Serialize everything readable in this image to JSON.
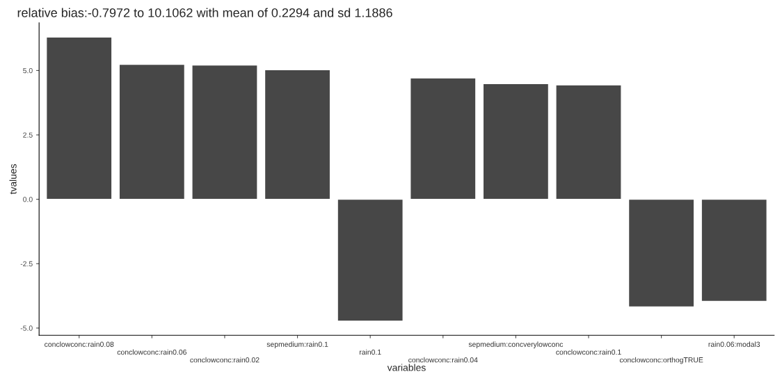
{
  "chart_data": {
    "type": "bar",
    "title": "relative bias:-0.7972 to 10.1062 with mean of 0.2294 and sd 1.1886",
    "xlabel": "variables",
    "ylabel": "tvalues",
    "categories": [
      "conclowconc:rain0.08",
      "conclowconc:rain0.06",
      "conclowconc:rain0.02",
      "sepmedium:rain0.1",
      "rain0.1",
      "conclowconc:rain0.04",
      "sepmedium:concverylowconc",
      "conclowconc:rain0.1",
      "conclowconc:orthogTRUE",
      "rain0.06:modal3"
    ],
    "values": [
      6.3,
      5.24,
      5.21,
      5.03,
      -4.73,
      4.71,
      4.49,
      4.44,
      -4.18,
      -3.96
    ],
    "color": "#474747",
    "ylim": [
      -5.28,
      6.85
    ],
    "yticks": [
      {
        "value": -5,
        "label": "-5.0"
      },
      {
        "value": -2.5,
        "label": "-2.5"
      },
      {
        "value": 0,
        "label": "0.0"
      },
      {
        "value": 2.5,
        "label": "2.5"
      },
      {
        "value": 5,
        "label": "5.0"
      }
    ],
    "grid": false
  }
}
